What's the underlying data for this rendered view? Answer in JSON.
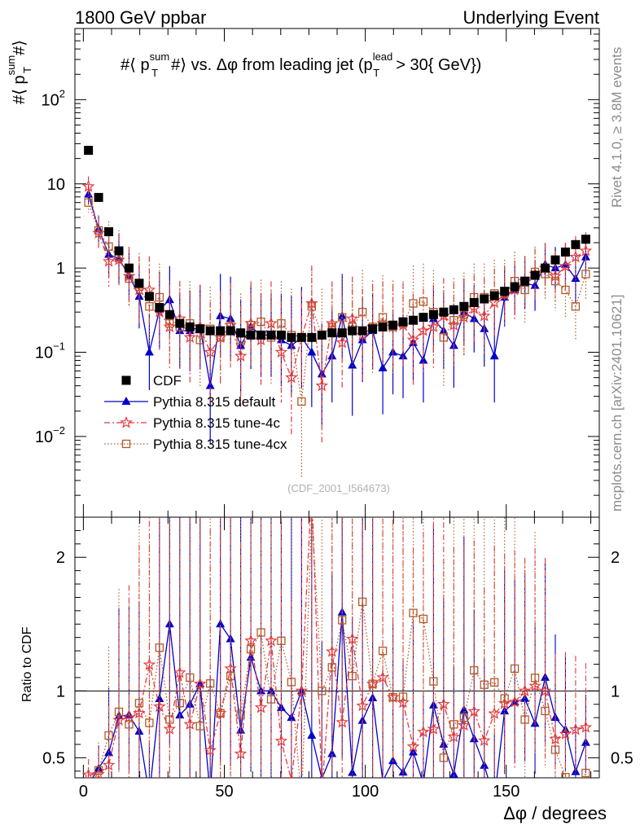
{
  "header": {
    "left": "1800 GeV ppbar",
    "right": "Underlying Event"
  },
  "side_text": {
    "rivet": "Rivet 4.1.0, ≥ 3.8M events",
    "mcplots": "mcplots.cern.ch [arXiv:2401.10621]"
  },
  "watermark": "(CDF_2001_I564673)",
  "chart_data": {
    "type": "scatter",
    "title": "#⟨ p_T^sum #⟩ vs. Δφ from leading jet (p_T^lead > 30{ GeV})",
    "title_parts": {
      "prefix": "#⟨ p",
      "sup": "sum",
      "sub": "T",
      "mid": "#⟩ vs. Δφ from leading jet  (p",
      "sup2": "lead",
      "sub2": "T",
      "suffix": "> 30{ GeV})"
    },
    "ylabel_parts": {
      "prefix": "#⟨ p",
      "sup": "sum",
      "sub": "T",
      "suffix": "#⟩"
    },
    "xlabel": "Δφ / degrees",
    "ratio_ylabel": "Ratio to CDF",
    "xlim": [
      -3,
      183
    ],
    "ylim": [
      0.0011,
      700
    ],
    "ratio_ylim": [
      0.35,
      2.3
    ],
    "x_ticks": [
      "0",
      "50",
      "100",
      "150"
    ],
    "x_tick_values": [
      0,
      50,
      100,
      150
    ],
    "y_ticks_main": [
      {
        "value": 0.01,
        "base": "10",
        "exp": "−2"
      },
      {
        "value": 0.1,
        "base": "10",
        "exp": "−1"
      },
      {
        "value": 1,
        "base": "1",
        "exp": ""
      },
      {
        "value": 10,
        "base": "10",
        "exp": ""
      },
      {
        "value": 100,
        "base": "10",
        "exp": "2"
      }
    ],
    "ratio_ticks": [
      "0.5",
      "1",
      "2"
    ],
    "ratio_tick_values": [
      0.5,
      1,
      2
    ],
    "series": [
      {
        "name": "CDF",
        "color": "#000000",
        "marker": "square-filled",
        "line": "none",
        "x": [
          1.8,
          5.4,
          9,
          12.6,
          16.2,
          19.8,
          23.4,
          27,
          30.6,
          34.2,
          37.8,
          41.4,
          45,
          48.6,
          52.2,
          55.8,
          59.4,
          63,
          66.6,
          70.2,
          73.8,
          77.4,
          81,
          84.6,
          88.2,
          91.8,
          95.4,
          99,
          102.6,
          106.2,
          109.8,
          113.4,
          117,
          120.6,
          124.2,
          127.8,
          131.4,
          135,
          138.6,
          142.2,
          145.8,
          149.4,
          153,
          156.6,
          160.2,
          163.8,
          167.4,
          171,
          174.6,
          178.2
        ],
        "y": [
          25,
          6.9,
          2.7,
          1.6,
          1.0,
          0.66,
          0.46,
          0.34,
          0.28,
          0.22,
          0.2,
          0.19,
          0.18,
          0.18,
          0.18,
          0.17,
          0.16,
          0.16,
          0.16,
          0.16,
          0.15,
          0.15,
          0.15,
          0.16,
          0.17,
          0.17,
          0.18,
          0.18,
          0.19,
          0.2,
          0.21,
          0.23,
          0.24,
          0.26,
          0.28,
          0.3,
          0.32,
          0.35,
          0.39,
          0.43,
          0.47,
          0.53,
          0.6,
          0.7,
          0.82,
          1.0,
          1.25,
          1.55,
          1.9,
          2.2
        ]
      },
      {
        "name": "Pythia 8.315 default",
        "color": "#0000cc",
        "marker": "triangle-filled",
        "line": "solid",
        "x": [
          1.8,
          5.4,
          9,
          12.6,
          16.2,
          19.8,
          23.4,
          27,
          30.6,
          34.2,
          37.8,
          41.4,
          45,
          48.6,
          52.2,
          55.8,
          59.4,
          63,
          66.6,
          70.2,
          73.8,
          77.4,
          81,
          84.6,
          88.2,
          91.8,
          95.4,
          99,
          102.6,
          106.2,
          109.8,
          113.4,
          117,
          120.6,
          124.2,
          127.8,
          131.4,
          135,
          138.6,
          142.2,
          145.8,
          149.4,
          153,
          156.6,
          160.2,
          163.8,
          167.4,
          171,
          174.6,
          178.2
        ],
        "y": [
          7.5,
          2.9,
          1.45,
          1.3,
          0.82,
          0.46,
          0.1,
          0.32,
          0.42,
          0.18,
          0.18,
          0.2,
          0.04,
          0.27,
          0.25,
          0.12,
          0.2,
          0.16,
          0.16,
          0.14,
          0.12,
          0.15,
          0.1,
          0.055,
          0.09,
          0.27,
          0.07,
          0.14,
          0.18,
          0.065,
          0.1,
          0.09,
          0.13,
          0.08,
          0.25,
          0.18,
          0.12,
          0.3,
          0.25,
          0.19,
          0.09,
          0.45,
          0.55,
          0.66,
          0.62,
          1.1,
          1.0,
          1.1,
          0.75,
          1.35
        ],
        "err": [
          0.12,
          0.15,
          0.28,
          0.3,
          0.3,
          0.38,
          0.45,
          0.45,
          0.4,
          0.45,
          0.48,
          0.5,
          0.7,
          0.5,
          0.5,
          0.55,
          0.5,
          0.5,
          0.5,
          0.55,
          0.6,
          0.6,
          0.65,
          0.6,
          0.55,
          0.5,
          0.6,
          0.5,
          0.45,
          0.55,
          0.5,
          0.5,
          0.45,
          0.5,
          0.4,
          0.45,
          0.5,
          0.4,
          0.4,
          0.45,
          0.55,
          0.35,
          0.3,
          0.3,
          0.3,
          0.25,
          0.25,
          0.25,
          0.28,
          0.2
        ]
      },
      {
        "name": "Pythia 8.315 tune-4c",
        "color": "#e8383d",
        "marker": "star-open",
        "line": "dashdot",
        "x": [
          1.8,
          5.4,
          9,
          12.6,
          16.2,
          19.8,
          23.4,
          27,
          30.6,
          34.2,
          37.8,
          41.4,
          45,
          48.6,
          52.2,
          55.8,
          59.4,
          63,
          66.6,
          70.2,
          73.8,
          77.4,
          81,
          84.6,
          88.2,
          91.8,
          95.4,
          99,
          102.6,
          106.2,
          109.8,
          113.4,
          117,
          120.6,
          124.2,
          127.8,
          131.4,
          135,
          138.6,
          142.2,
          145.8,
          149.4,
          153,
          156.6,
          160.2,
          163.8,
          167.4,
          171,
          174.6,
          178.2
        ],
        "y": [
          9.3,
          2.6,
          1.2,
          1.25,
          0.8,
          0.55,
          0.55,
          0.3,
          0.2,
          0.25,
          0.15,
          0.2,
          0.1,
          0.15,
          0.21,
          0.09,
          0.22,
          0.14,
          0.22,
          0.1,
          0.05,
          0.15,
          0.38,
          0.04,
          0.22,
          0.13,
          0.25,
          0.16,
          0.2,
          0.22,
          0.2,
          0.21,
          0.14,
          0.18,
          0.2,
          0.27,
          0.21,
          0.26,
          0.33,
          0.27,
          0.39,
          0.48,
          0.55,
          0.7,
          0.85,
          1.0,
          0.8,
          1.05,
          1.35,
          1.6
        ],
        "err": [
          0.12,
          0.18,
          0.3,
          0.3,
          0.35,
          0.4,
          0.4,
          0.45,
          0.5,
          0.45,
          0.55,
          0.5,
          0.6,
          0.55,
          0.5,
          0.6,
          0.5,
          0.55,
          0.5,
          0.6,
          0.7,
          0.55,
          0.45,
          0.7,
          0.5,
          0.55,
          0.5,
          0.55,
          0.5,
          0.5,
          0.5,
          0.5,
          0.55,
          0.5,
          0.5,
          0.45,
          0.5,
          0.45,
          0.4,
          0.45,
          0.4,
          0.35,
          0.35,
          0.3,
          0.3,
          0.3,
          0.3,
          0.28,
          0.25,
          0.22
        ]
      },
      {
        "name": "Pythia 8.315 tune-4cx",
        "color": "#b35a28",
        "marker": "square-open",
        "line": "dotted",
        "x": [
          1.8,
          5.4,
          9,
          12.6,
          16.2,
          19.8,
          23.4,
          27,
          30.6,
          34.2,
          37.8,
          41.4,
          45,
          48.6,
          52.2,
          55.8,
          59.4,
          63,
          66.6,
          70.2,
          73.8,
          77.4,
          81,
          84.6,
          88.2,
          91.8,
          95.4,
          99,
          102.6,
          106.2,
          109.8,
          113.4,
          117,
          120.6,
          124.2,
          127.8,
          131.4,
          135,
          138.6,
          142.2,
          145.8,
          149.4,
          153,
          156.6,
          160.2,
          163.8,
          167.4,
          171,
          174.6,
          178.2
        ],
        "y": [
          6,
          2.8,
          1.8,
          1.35,
          0.75,
          0.6,
          0.35,
          0.45,
          0.22,
          0.2,
          0.22,
          0.14,
          0.19,
          0.15,
          0.2,
          0.14,
          0.21,
          0.23,
          0.15,
          0.22,
          0.16,
          0.026,
          0.35,
          0.16,
          0.2,
          0.26,
          0.2,
          0.3,
          0.2,
          0.26,
          0.2,
          0.22,
          0.38,
          0.4,
          0.3,
          0.15,
          0.24,
          0.28,
          0.45,
          0.45,
          0.5,
          0.5,
          0.7,
          0.55,
          0.9,
          0.85,
          0.7,
          0.55,
          0.35,
          0.85
        ],
        "err": [
          0.12,
          0.18,
          0.3,
          0.32,
          0.35,
          0.4,
          0.45,
          0.4,
          0.5,
          0.5,
          0.5,
          0.55,
          0.5,
          0.55,
          0.5,
          0.55,
          0.5,
          0.5,
          0.55,
          0.5,
          0.55,
          0.9,
          0.45,
          0.55,
          0.5,
          0.5,
          0.55,
          0.5,
          0.55,
          0.5,
          0.55,
          0.5,
          0.45,
          0.45,
          0.5,
          0.6,
          0.5,
          0.5,
          0.4,
          0.4,
          0.4,
          0.4,
          0.35,
          0.4,
          0.3,
          0.3,
          0.35,
          0.35,
          0.4,
          0.3
        ]
      }
    ],
    "legend_placement": "lower-left"
  }
}
